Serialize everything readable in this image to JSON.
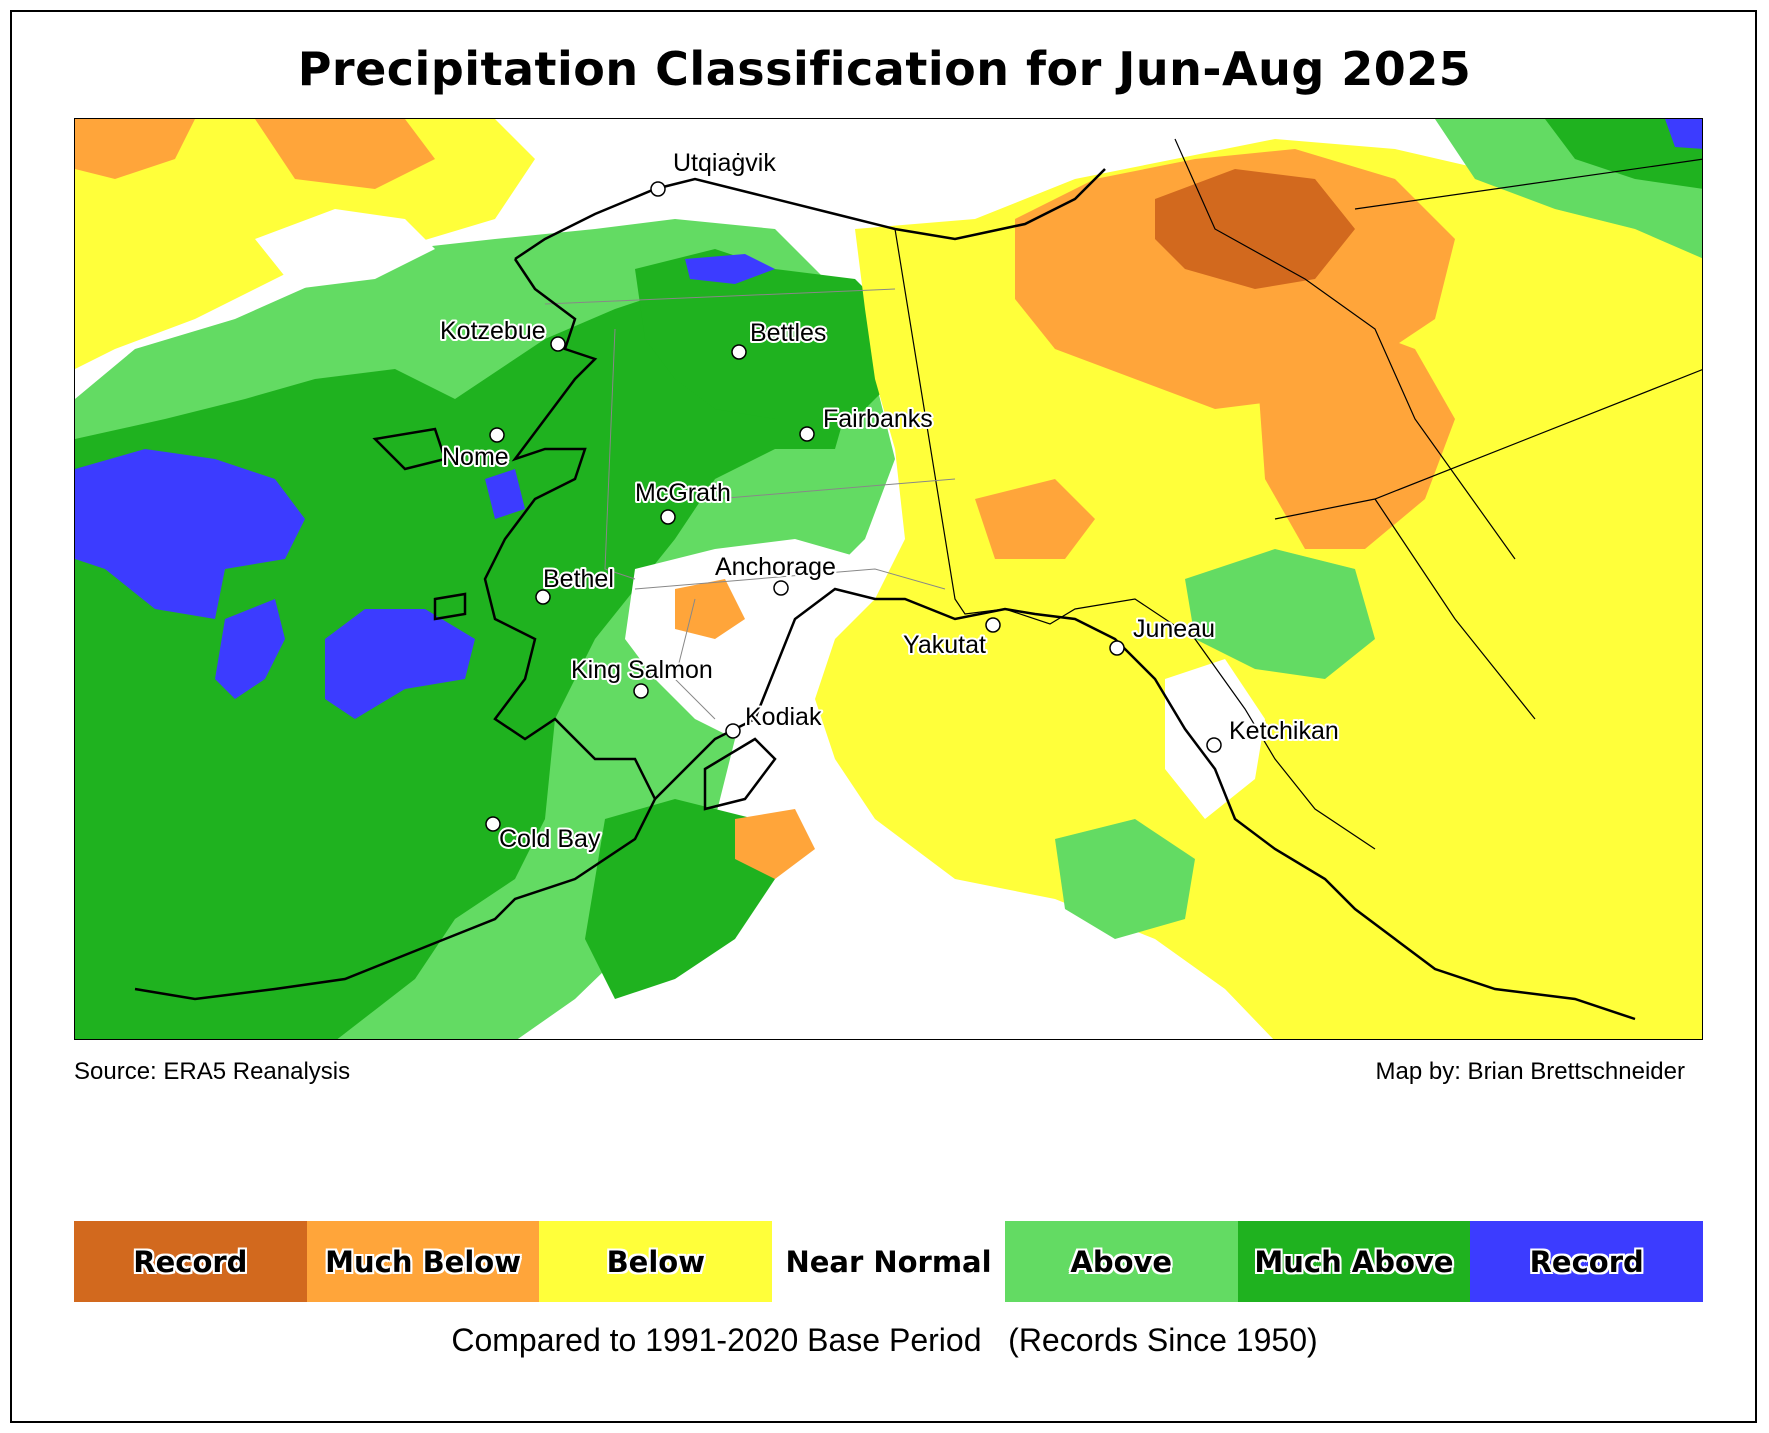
{
  "title": "Precipitation Classification for Jun-Aug 2025",
  "source": "Source: ERA5 Reanalysis",
  "credit": "Map by: Brian Brettschneider",
  "note": "Compared to 1991-2020 Base Period   (Records Since 1950)",
  "legend": [
    {
      "label": "Record",
      "color": "#d2691e"
    },
    {
      "label": "Much Below",
      "color": "#ffa53a"
    },
    {
      "label": "Below",
      "color": "#ffff3a"
    },
    {
      "label": "Near Normal",
      "color": "#ffffff"
    },
    {
      "label": "Above",
      "color": "#63db63"
    },
    {
      "label": "Much Above",
      "color": "#1fb21f"
    },
    {
      "label": "Record",
      "color": "#3c3cff"
    }
  ],
  "cities": [
    {
      "name": "Utqiaġvik"
    },
    {
      "name": "Kotzebue"
    },
    {
      "name": "Bettles"
    },
    {
      "name": "Nome"
    },
    {
      "name": "Fairbanks"
    },
    {
      "name": "McGrath"
    },
    {
      "name": "Bethel"
    },
    {
      "name": "Anchorage"
    },
    {
      "name": "Yakutat"
    },
    {
      "name": "Juneau"
    },
    {
      "name": "King Salmon"
    },
    {
      "name": "Kodiak"
    },
    {
      "name": "Ketchikan"
    },
    {
      "name": "Cold Bay"
    }
  ]
}
